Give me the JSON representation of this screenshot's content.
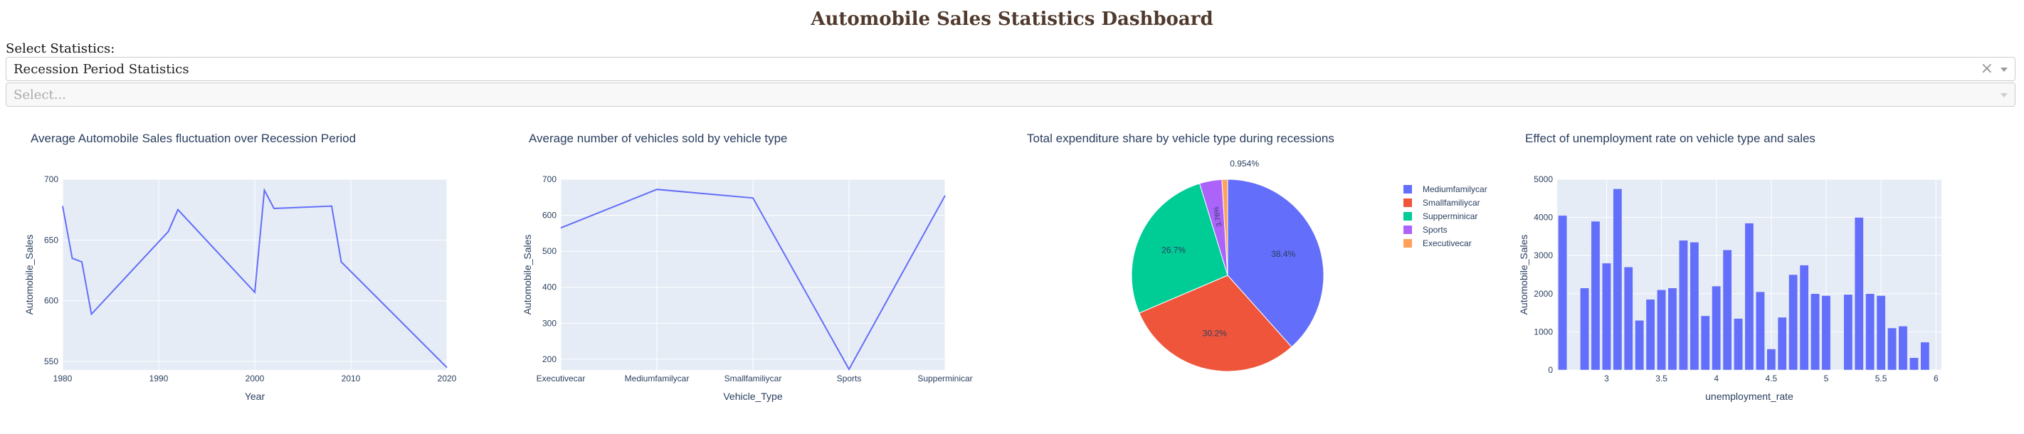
{
  "page": {
    "title": "Automobile Sales Statistics Dashboard",
    "select_label": "Select Statistics:",
    "dropdown1": {
      "value": "Recession Period Statistics",
      "clear_icon": "×"
    },
    "dropdown2": {
      "placeholder": "Select..."
    }
  },
  "colors": {
    "plot_bg": "#E5ECF6",
    "line": "#636EFA",
    "title": "#503a2e"
  },
  "chart_data": [
    {
      "type": "line",
      "title": "Average Automobile Sales fluctuation over Recession Period",
      "xlabel": "Year",
      "ylabel": "Automobile_Sales",
      "xlim": [
        1980,
        2020
      ],
      "ylim": [
        543,
        700
      ],
      "xticks": [
        1980,
        1990,
        2000,
        2010,
        2020
      ],
      "yticks": [
        550,
        600,
        650,
        700
      ],
      "x": [
        1980,
        1981,
        1982,
        1983,
        1991,
        1992,
        2000,
        2001,
        2002,
        2008,
        2009,
        2020
      ],
      "y": [
        678,
        635,
        632,
        589,
        657,
        675,
        607,
        691,
        676,
        678,
        632,
        545
      ]
    },
    {
      "type": "line",
      "title": "Average number of vehicles sold by vehicle type",
      "xlabel": "Vehicle_Type",
      "ylabel": "Automobile_Sales",
      "ylim": [
        170,
        700
      ],
      "yticks": [
        200,
        300,
        400,
        500,
        600,
        700
      ],
      "categories": [
        "Executivecar",
        "Mediumfamilycar",
        "Smallfamiliycar",
        "Sports",
        "Supperminicar"
      ],
      "values": [
        565,
        672,
        648,
        172,
        655
      ]
    },
    {
      "type": "pie",
      "title": "Total expenditure share by vehicle type during recessions",
      "legend": "right",
      "slices": [
        {
          "name": "Mediumfamilycar",
          "value": 38.4,
          "label": "38.4%",
          "color": "#636EFA"
        },
        {
          "name": "Smallfamiliycar",
          "value": 30.2,
          "label": "30.2%",
          "color": "#EF553B"
        },
        {
          "name": "Supperminicar",
          "value": 26.7,
          "label": "26.7%",
          "color": "#00CC96"
        },
        {
          "name": "Sports",
          "value": 3.76,
          "label": "3.76%",
          "color": "#AB63FA"
        },
        {
          "name": "Executivecar",
          "value": 0.954,
          "label": "0.954%",
          "color": "#FFA15A"
        }
      ]
    },
    {
      "type": "bar",
      "title": "Effect of unemployment rate on vehicle type and sales",
      "xlabel": "unemployment_rate",
      "ylabel": "Automobile_Sales",
      "xlim": [
        2.55,
        6.05
      ],
      "ylim": [
        0,
        5000
      ],
      "xticks": [
        3,
        3.5,
        4,
        4.5,
        5,
        5.5,
        6
      ],
      "xtick_labels": [
        "3",
        "3.5",
        "4",
        "4.5",
        "5",
        "5.5",
        "6"
      ],
      "yticks": [
        0,
        1000,
        2000,
        3000,
        4000,
        5000
      ],
      "x": [
        2.6,
        2.8,
        2.9,
        3.0,
        3.1,
        3.2,
        3.3,
        3.4,
        3.5,
        3.6,
        3.7,
        3.8,
        3.9,
        4.0,
        4.1,
        4.2,
        4.3,
        4.4,
        4.5,
        4.6,
        4.7,
        4.8,
        4.9,
        5.0,
        5.2,
        5.3,
        5.4,
        5.5,
        5.6,
        5.7,
        5.8,
        5.9,
        6.0
      ],
      "values": [
        4050,
        2150,
        3900,
        2800,
        4750,
        2700,
        1300,
        1850,
        2100,
        2150,
        3400,
        3350,
        1420,
        2200,
        3150,
        1350,
        3850,
        2050,
        550,
        1380,
        2500,
        2750,
        2000,
        1950,
        1980,
        4000,
        2000,
        1950,
        1100,
        1150,
        320,
        730,
        0
      ]
    }
  ]
}
